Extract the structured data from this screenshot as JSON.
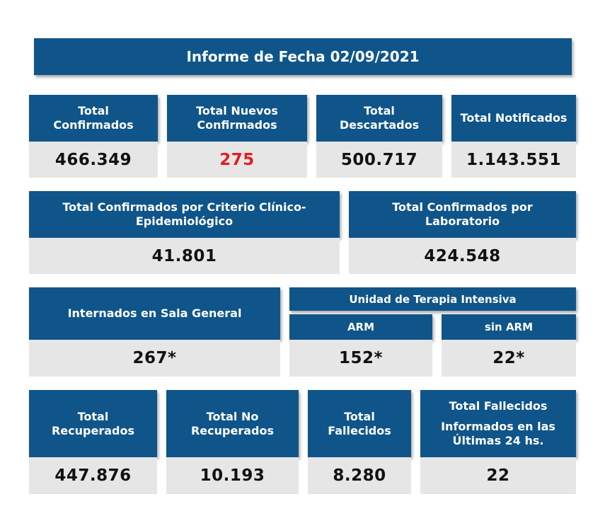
{
  "title": "Informe de Fecha 02/09/2021",
  "row1": [
    {
      "label": [
        "Total",
        "Confirmados"
      ],
      "value": "466.349"
    },
    {
      "label": [
        "Total Nuevos",
        "Confirmados"
      ],
      "value": "275"
    },
    {
      "label": [
        "Total",
        "Descartados"
      ],
      "value": "500.717"
    },
    {
      "label": [
        "Total Notificados"
      ],
      "value": "1.143.551"
    }
  ],
  "row2": [
    {
      "label": [
        "Total Confirmados por Criterio Clínico-",
        "Epidemiológico"
      ],
      "value": "41.801"
    },
    {
      "label": [
        "Total Confirmados por",
        "Laboratorio"
      ],
      "value": "424.548"
    }
  ],
  "row3": {
    "sala": {
      "label": "Internados en Sala General",
      "value": "267*"
    },
    "uti": {
      "label": "Unidad de Terapia Intensiva",
      "arm": {
        "label": "ARM",
        "value": "152*"
      },
      "sin_arm": {
        "label": "sin ARM",
        "value": "22*"
      }
    }
  },
  "row4": [
    {
      "label": [
        "Total",
        "Recuperados"
      ],
      "value": "447.876"
    },
    {
      "label": [
        "Total No",
        "Recuperados"
      ],
      "value": "10.193"
    },
    {
      "label": [
        "Total",
        "Fallecidos"
      ],
      "value": "8.280"
    },
    {
      "label": [
        "Total Fallecidos",
        "Informados en las",
        "Últimas 24 hs."
      ],
      "value": "22"
    }
  ],
  "colors": {
    "header_bg": "#0f558a",
    "value_bg": "#e6e6e6",
    "highlight": "#e41c24"
  }
}
